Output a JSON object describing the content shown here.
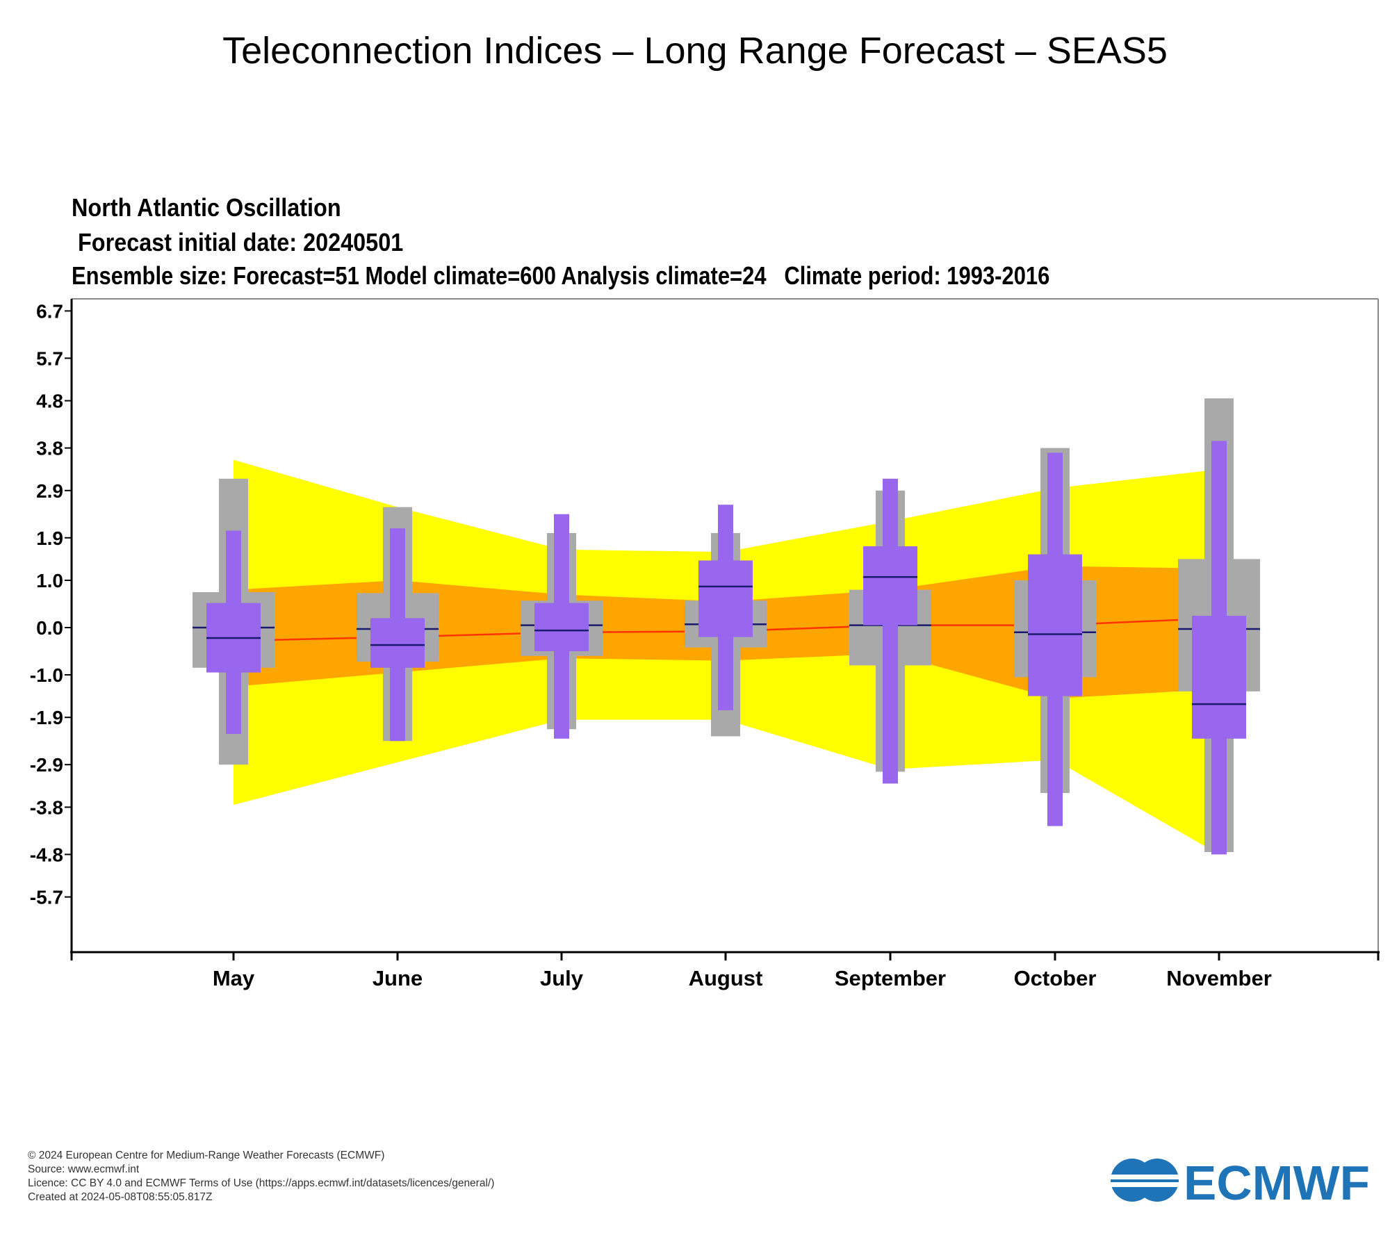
{
  "page": {
    "title": "Teleconnection Indices – Long Range Forecast – SEAS5"
  },
  "chart_data": {
    "type": "box",
    "title": "North Atlantic Oscillation",
    "subtitle_lines": [
      " Forecast initial date: 20240501",
      "Ensemble size: Forecast=51 Model climate=600 Analysis climate=24   Climate period: 1993-2016"
    ],
    "xlabel": "",
    "ylabel": "",
    "ylim": [
      -6.7,
      6.7
    ],
    "y_ticks": [
      "6.7",
      "5.7",
      "4.8",
      "3.8",
      "2.9",
      "1.9",
      "1.0",
      "0.0",
      "-1.0",
      "-1.9",
      "-2.9",
      "-3.8",
      "-4.8",
      "-5.7"
    ],
    "y_tick_values": [
      6.7,
      5.7,
      4.8,
      3.8,
      2.9,
      1.9,
      1.0,
      0.0,
      -1.0,
      -1.9,
      -2.9,
      -3.8,
      -4.8,
      -5.7
    ],
    "categories": [
      "May",
      "June",
      "July",
      "August",
      "September",
      "October",
      "November"
    ],
    "analysis_climate": {
      "outer_band": {
        "color": "#ffff00",
        "upper": [
          3.55,
          2.55,
          1.65,
          1.6,
          2.25,
          2.95,
          3.35
        ],
        "lower": [
          -3.75,
          -2.85,
          -1.95,
          -1.95,
          -3.0,
          -2.8,
          -4.8
        ]
      },
      "inner_band": {
        "color": "#ffa500",
        "upper": [
          0.8,
          1.0,
          0.7,
          0.55,
          0.8,
          1.3,
          1.25
        ],
        "lower": [
          -1.25,
          -0.95,
          -0.65,
          -0.7,
          -0.55,
          -1.5,
          -1.3
        ]
      },
      "median_line": {
        "color": "#ff3300",
        "values": [
          -0.28,
          -0.2,
          -0.1,
          -0.08,
          0.05,
          0.05,
          0.2
        ]
      }
    },
    "model_climate": {
      "color": "#a9a9a9",
      "whisker_high": [
        3.15,
        2.55,
        2.0,
        2.0,
        2.9,
        3.8,
        4.85
      ],
      "box_high": [
        0.75,
        0.73,
        0.57,
        0.57,
        0.8,
        1.0,
        1.45
      ],
      "median": [
        0.0,
        -0.03,
        0.05,
        0.07,
        0.05,
        -0.1,
        -0.03
      ],
      "box_low": [
        -0.85,
        -0.72,
        -0.6,
        -0.42,
        -0.8,
        -1.05,
        -1.35
      ],
      "whisker_low": [
        -2.9,
        -2.4,
        -2.15,
        -2.3,
        -3.05,
        -3.5,
        -4.75
      ]
    },
    "forecast": {
      "color": "#9966ee",
      "whisker_high": [
        2.05,
        2.1,
        2.4,
        2.6,
        3.15,
        3.7,
        3.95
      ],
      "box_high": [
        0.52,
        0.2,
        0.52,
        1.42,
        1.72,
        1.55,
        0.25
      ],
      "median": [
        -0.22,
        -0.37,
        -0.06,
        0.87,
        1.07,
        -0.14,
        -1.62
      ],
      "box_low": [
        -0.95,
        -0.85,
        -0.5,
        -0.2,
        0.05,
        -1.45,
        -2.35
      ],
      "whisker_low": [
        -2.25,
        -2.4,
        -2.35,
        -1.75,
        -3.3,
        -4.2,
        -4.8
      ]
    }
  },
  "footer": {
    "lines": [
      "© 2024 European Centre for Medium-Range Weather Forecasts (ECMWF)",
      "Source: www.ecmwf.int",
      "Licence: CC BY 4.0 and ECMWF Terms of Use (https://apps.ecmwf.int/datasets/licences/general/)",
      "Created at 2024-05-08T08:55:05.817Z"
    ]
  },
  "logo": {
    "text": "ECMWF",
    "color": "#1f73b7"
  }
}
